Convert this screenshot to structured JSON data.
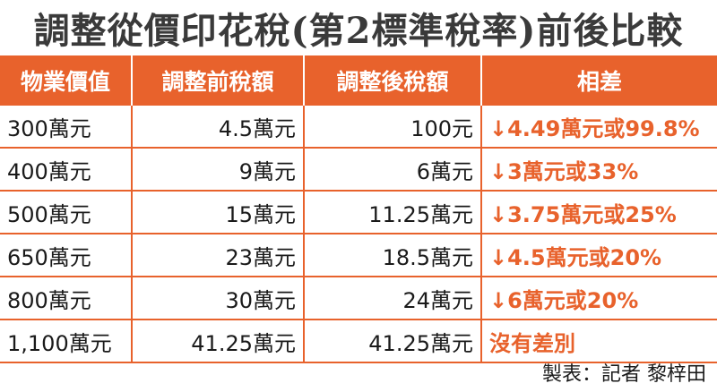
{
  "title": "調整從價印花稅(第2標準稅率)前後比較",
  "table": {
    "header": [
      "物業價值",
      "調整前稅額",
      "調整後稅額",
      "相差"
    ],
    "rows": [
      [
        "300萬元",
        "4.5萬元",
        "100元",
        "↓4.49萬元或99.8%"
      ],
      [
        "400萬元",
        "9萬元",
        "6萬元",
        "↓3萬元或33%"
      ],
      [
        "500萬元",
        "15萬元",
        "11.25萬元",
        "↓3.75萬元或25%"
      ],
      [
        "650萬元",
        "23萬元",
        "18.5萬元",
        "↓4.5萬元或20%"
      ],
      [
        "800萬元",
        "30萬元",
        "24萬元",
        "↓6萬元或20%"
      ],
      [
        "1,100萬元",
        "41.25萬元",
        "41.25萬元",
        "沒有差別"
      ]
    ]
  },
  "credit": "製表：記者 黎梓田"
}
